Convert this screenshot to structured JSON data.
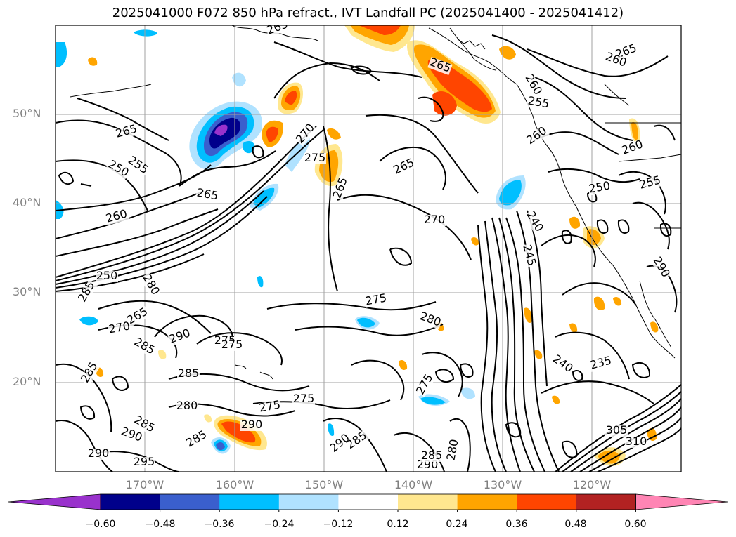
{
  "title": "2025041000 F072 850 hPa refract., IVT Landfall PC (2025041400 - 2025041412)",
  "lat_labels": [
    "50°N",
    "40°N",
    "30°N",
    "20°N"
  ],
  "lon_labels": [
    "170°W",
    "160°W",
    "150°W",
    "140°W",
    "130°W",
    "120°W"
  ],
  "colorbar": {
    "ticks": [
      "−0.60",
      "−0.48",
      "−0.36",
      "−0.24",
      "−0.12",
      "0.12",
      "0.24",
      "0.36",
      "0.48",
      "0.60"
    ],
    "colors": [
      "#9932cc",
      "#00008b",
      "#3a5fcd",
      "#00bfff",
      "#b0e2ff",
      "#ffffff",
      "#ffe78f",
      "#ffa500",
      "#ff4500",
      "#b22222",
      "#ff85b4"
    ]
  },
  "contour_labels": [
    {
      "text": "265"
    },
    {
      "text": "250"
    },
    {
      "text": "255"
    },
    {
      "text": "260"
    },
    {
      "text": "265"
    },
    {
      "text": "270"
    },
    {
      "text": "275"
    },
    {
      "text": "265"
    },
    {
      "text": "265"
    },
    {
      "text": "270"
    },
    {
      "text": "265"
    },
    {
      "text": "265"
    },
    {
      "text": "260"
    },
    {
      "text": "255"
    },
    {
      "text": "260"
    },
    {
      "text": "265"
    },
    {
      "text": "260"
    },
    {
      "text": "260"
    },
    {
      "text": "250"
    },
    {
      "text": "255"
    },
    {
      "text": "245"
    },
    {
      "text": "275"
    },
    {
      "text": "280"
    },
    {
      "text": "250"
    },
    {
      "text": "240"
    },
    {
      "text": "290"
    },
    {
      "text": "275"
    },
    {
      "text": "285"
    },
    {
      "text": "270"
    },
    {
      "text": "265"
    },
    {
      "text": "285"
    },
    {
      "text": "240"
    },
    {
      "text": "235"
    },
    {
      "text": "285"
    },
    {
      "text": "280"
    },
    {
      "text": "275"
    },
    {
      "text": "275"
    },
    {
      "text": "275"
    },
    {
      "text": "290"
    },
    {
      "text": "285"
    },
    {
      "text": "290"
    },
    {
      "text": "285"
    },
    {
      "text": "290"
    },
    {
      "text": "285"
    },
    {
      "text": "290"
    },
    {
      "text": "295"
    },
    {
      "text": "285"
    },
    {
      "text": "290"
    },
    {
      "text": "280"
    },
    {
      "text": "310"
    },
    {
      "text": "305"
    },
    {
      "text": "290"
    },
    {
      "text": "285"
    },
    {
      "text": "280"
    },
    {
      "text": "275"
    }
  ]
}
